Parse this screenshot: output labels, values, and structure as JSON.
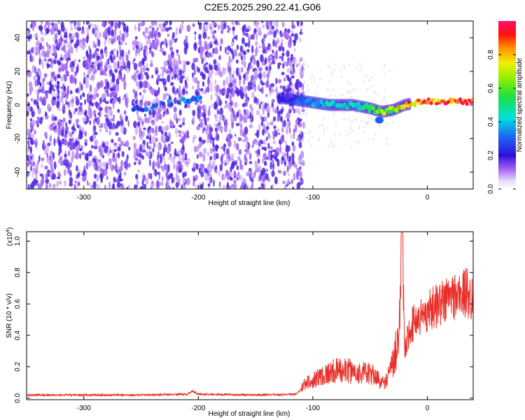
{
  "figure_title": "C2E5.2025.290.22.41.G06",
  "colorbar": {
    "label": "Normalized spectral amplitude",
    "ticks": [
      "0.0",
      "0.2",
      "0.4",
      "0.6",
      "0.8"
    ],
    "tick_values": [
      0.0,
      0.2,
      0.4,
      0.6,
      0.8
    ],
    "range": [
      0,
      1
    ]
  },
  "chart_data": [
    {
      "type": "heatmap",
      "title": "",
      "xlabel": "Height of straight line (km)",
      "ylabel": "Frequency (Hz)",
      "xlim": [
        -350,
        40
      ],
      "ylim": [
        -50,
        50
      ],
      "xticks": [
        -300,
        -200,
        -100,
        0
      ],
      "xtick_labels": [
        "-300",
        "-200",
        "-100",
        "0"
      ],
      "yticks": [
        -40,
        -20,
        0,
        20,
        40
      ],
      "ytick_labels": [
        "-40",
        "-20",
        "0",
        "20",
        "40"
      ],
      "noise_region": {
        "x_range": [
          -350,
          -110
        ],
        "freq_range": [
          -50,
          50
        ],
        "amplitude": 0.15
      },
      "gaps": [
        [
          -260,
          -257
        ],
        [
          -208,
          -205
        ]
      ],
      "signal_track": [
        {
          "x": -257,
          "freq": -3,
          "amplitude": 0.3
        },
        {
          "x": -235,
          "freq": 0,
          "amplitude": 0.3
        },
        {
          "x": -205,
          "freq": 3,
          "amplitude": 0.35
        },
        {
          "x": -125,
          "freq": 4,
          "amplitude": 0.2
        },
        {
          "x": -105,
          "freq": 2,
          "amplitude": 0.35
        },
        {
          "x": -85,
          "freq": 0,
          "amplitude": 0.45
        },
        {
          "x": -65,
          "freq": 0,
          "amplitude": 0.45
        },
        {
          "x": -50,
          "freq": -2,
          "amplitude": 0.55
        },
        {
          "x": -40,
          "freq": -4,
          "amplitude": 0.65
        },
        {
          "x": -30,
          "freq": -3,
          "amplitude": 0.7
        },
        {
          "x": -20,
          "freq": 0,
          "amplitude": 0.8
        },
        {
          "x": -5,
          "freq": 2,
          "amplitude": 0.9
        },
        {
          "x": 10,
          "freq": 2,
          "amplitude": 0.95
        },
        {
          "x": 40,
          "freq": 2,
          "amplitude": 1.0
        }
      ],
      "secondary_blob": {
        "x": -42,
        "freq": -9,
        "amplitude": 0.3
      }
    },
    {
      "type": "line",
      "title": "",
      "xlabel": "Height of straight line (km)",
      "ylabel": "SNR (10 * v/v)",
      "y_multiplier": "(x10",
      "y_multiplier_exp": "4",
      "y_multiplier_close": ")",
      "xlim": [
        -350,
        40
      ],
      "ylim": [
        -0.01,
        1.06
      ],
      "xticks": [
        -300,
        -200,
        -100,
        0
      ],
      "xtick_labels": [
        "-300",
        "-200",
        "-100",
        "0"
      ],
      "yticks": [
        0.0,
        0.2,
        0.4,
        0.6,
        0.8,
        1.0
      ],
      "ytick_labels": [
        "0.0",
        "0.2",
        "0.4",
        "0.6",
        "0.8",
        "1.0"
      ],
      "color": "#e8302a",
      "series": [
        {
          "x": [
            -350,
            -300,
            -250,
            -210,
            -205,
            -200,
            -150,
            -115,
            -108,
            -100,
            -90,
            -80,
            -70,
            -60,
            -50,
            -45,
            -40,
            -35,
            -30,
            -25,
            -22,
            -20,
            -15,
            -10,
            -5,
            0,
            5,
            10,
            15,
            20,
            25,
            30,
            35,
            40
          ],
          "values": [
            0.02,
            0.02,
            0.02,
            0.025,
            0.045,
            0.025,
            0.02,
            0.025,
            0.07,
            0.1,
            0.13,
            0.15,
            0.15,
            0.14,
            0.13,
            0.12,
            0.08,
            0.1,
            0.2,
            0.35,
            1.05,
            0.3,
            0.45,
            0.5,
            0.52,
            0.55,
            0.58,
            0.6,
            0.62,
            0.65,
            0.65,
            0.66,
            0.67,
            0.65
          ]
        }
      ]
    }
  ]
}
